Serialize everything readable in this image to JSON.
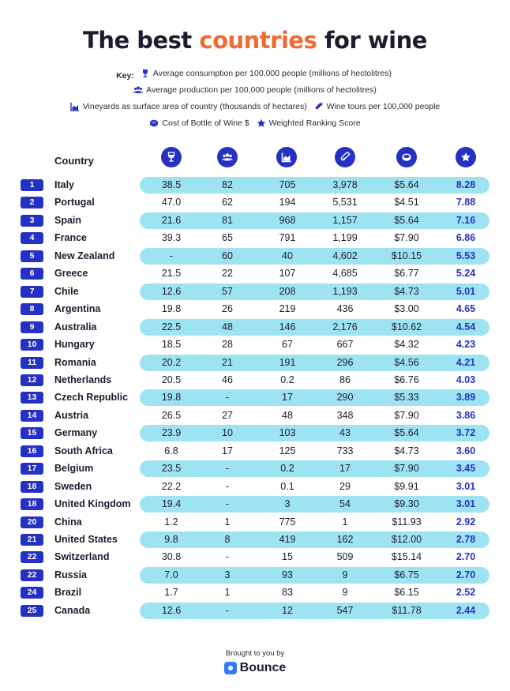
{
  "title": {
    "part1": "The best ",
    "accent": "countries",
    "part2": " for wine"
  },
  "key": {
    "label": "Key:",
    "consumption": "Average consumption per 100,000 people (millions of hectolitres)",
    "production": "Average production per 100,000 people (millions of hectolitres)",
    "vineyards": "Vineyards as surface area of country (thousands of hectares)",
    "tours": "Wine tours per 100,000 people",
    "cost": "Cost of Bottle of Wine $",
    "score": "Weighted Ranking Score"
  },
  "colors": {
    "accent": "#f06a34",
    "primary": "#2531c2",
    "stripe": "#9ee3f2"
  },
  "chart_data": {
    "type": "table",
    "title": "The best countries for wine",
    "columns": [
      "Country",
      "consumption-icon",
      "production-icon",
      "vineyards-icon",
      "tours-icon",
      "cost-icon",
      "score-icon"
    ],
    "country_header": "Country",
    "rows": [
      {
        "rank": "1",
        "country": "Italy",
        "consumption": "38.5",
        "production": "82",
        "vineyards": "705",
        "tours": "3,978",
        "cost": "$5.64",
        "score": "8.28"
      },
      {
        "rank": "2",
        "country": "Portugal",
        "consumption": "47.0",
        "production": "62",
        "vineyards": "194",
        "tours": "5,531",
        "cost": "$4.51",
        "score": "7.88"
      },
      {
        "rank": "3",
        "country": "Spain",
        "consumption": "21.6",
        "production": "81",
        "vineyards": "968",
        "tours": "1,157",
        "cost": "$5.64",
        "score": "7.16"
      },
      {
        "rank": "4",
        "country": "France",
        "consumption": "39.3",
        "production": "65",
        "vineyards": "791",
        "tours": "1,199",
        "cost": "$7.90",
        "score": "6.86"
      },
      {
        "rank": "5",
        "country": "New Zealand",
        "consumption": "-",
        "production": "60",
        "vineyards": "40",
        "tours": "4,602",
        "cost": "$10.15",
        "score": "5.53"
      },
      {
        "rank": "6",
        "country": "Greece",
        "consumption": "21.5",
        "production": "22",
        "vineyards": "107",
        "tours": "4,685",
        "cost": "$6.77",
        "score": "5.24"
      },
      {
        "rank": "7",
        "country": "Chile",
        "consumption": "12.6",
        "production": "57",
        "vineyards": "208",
        "tours": "1,193",
        "cost": "$4.73",
        "score": "5.01"
      },
      {
        "rank": "8",
        "country": "Argentina",
        "consumption": "19.8",
        "production": "26",
        "vineyards": "219",
        "tours": "436",
        "cost": "$3.00",
        "score": "4.65"
      },
      {
        "rank": "9",
        "country": "Australia",
        "consumption": "22.5",
        "production": "48",
        "vineyards": "146",
        "tours": "2,176",
        "cost": "$10.62",
        "score": "4.54"
      },
      {
        "rank": "10",
        "country": "Hungary",
        "consumption": "18.5",
        "production": "28",
        "vineyards": "67",
        "tours": "667",
        "cost": "$4.32",
        "score": "4.23"
      },
      {
        "rank": "11",
        "country": "Romania",
        "consumption": "20.2",
        "production": "21",
        "vineyards": "191",
        "tours": "296",
        "cost": "$4.56",
        "score": "4.21"
      },
      {
        "rank": "12",
        "country": "Netherlands",
        "consumption": "20.5",
        "production": "46",
        "vineyards": "0.2",
        "tours": "86",
        "cost": "$6.76",
        "score": "4.03"
      },
      {
        "rank": "13",
        "country": "Czech Republic",
        "consumption": "19.8",
        "production": "-",
        "vineyards": "17",
        "tours": "290",
        "cost": "$5.33",
        "score": "3.89"
      },
      {
        "rank": "14",
        "country": "Austria",
        "consumption": "26.5",
        "production": "27",
        "vineyards": "48",
        "tours": "348",
        "cost": "$7.90",
        "score": "3.86"
      },
      {
        "rank": "15",
        "country": "Germany",
        "consumption": "23.9",
        "production": "10",
        "vineyards": "103",
        "tours": "43",
        "cost": "$5.64",
        "score": "3.72"
      },
      {
        "rank": "16",
        "country": "South Africa",
        "consumption": "6.8",
        "production": "17",
        "vineyards": "125",
        "tours": "733",
        "cost": "$4.73",
        "score": "3.60"
      },
      {
        "rank": "17",
        "country": "Belgium",
        "consumption": "23.5",
        "production": "-",
        "vineyards": "0.2",
        "tours": "17",
        "cost": "$7.90",
        "score": "3.45"
      },
      {
        "rank": "18",
        "country": "Sweden",
        "consumption": "22.2",
        "production": "-",
        "vineyards": "0.1",
        "tours": "29",
        "cost": "$9.91",
        "score": "3.01"
      },
      {
        "rank": "18",
        "country": "United Kingdom",
        "consumption": "19.4",
        "production": "-",
        "vineyards": "3",
        "tours": "54",
        "cost": "$9.30",
        "score": "3.01"
      },
      {
        "rank": "20",
        "country": "China",
        "consumption": "1.2",
        "production": "1",
        "vineyards": "775",
        "tours": "1",
        "cost": "$11.93",
        "score": "2.92"
      },
      {
        "rank": "21",
        "country": "United States",
        "consumption": "9.8",
        "production": "8",
        "vineyards": "419",
        "tours": "162",
        "cost": "$12.00",
        "score": "2.78"
      },
      {
        "rank": "22",
        "country": "Switzerland",
        "consumption": "30.8",
        "production": "-",
        "vineyards": "15",
        "tours": "509",
        "cost": "$15.14",
        "score": "2.70"
      },
      {
        "rank": "22",
        "country": "Russia",
        "consumption": "7.0",
        "production": "3",
        "vineyards": "93",
        "tours": "9",
        "cost": "$6.75",
        "score": "2.70"
      },
      {
        "rank": "24",
        "country": "Brazil",
        "consumption": "1.7",
        "production": "1",
        "vineyards": "83",
        "tours": "9",
        "cost": "$6.15",
        "score": "2.52"
      },
      {
        "rank": "25",
        "country": "Canada",
        "consumption": "12.6",
        "production": "-",
        "vineyards": "12",
        "tours": "547",
        "cost": "$11.78",
        "score": "2.44"
      }
    ]
  },
  "footer": {
    "brought_by": "Brought to you by",
    "brand": "Bounce"
  }
}
